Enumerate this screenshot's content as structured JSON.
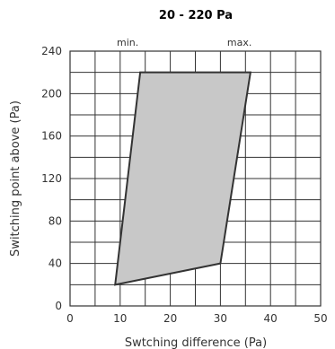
{
  "chart_data": {
    "type": "area",
    "title": "20 - 220 Pa",
    "xlabel": "Swtching difference (Pa)",
    "ylabel": "Switching point above (Pa)",
    "xlim": [
      0,
      50
    ],
    "ylim": [
      0,
      240
    ],
    "x_ticks": [
      "0",
      "10",
      "20",
      "30",
      "40",
      "50"
    ],
    "y_ticks": [
      "0",
      "40",
      "80",
      "120",
      "160",
      "200",
      "240"
    ],
    "grid": true,
    "annotations": [
      {
        "text": "min.",
        "x": 11.5
      },
      {
        "text": "max.",
        "x": 33.8
      }
    ],
    "polygon": {
      "x": [
        9,
        14,
        36,
        30
      ],
      "y": [
        20,
        220,
        220,
        40
      ]
    },
    "colors": {
      "fill": "#c8c8c8",
      "outline": "#333333",
      "grid": "#333333"
    }
  }
}
